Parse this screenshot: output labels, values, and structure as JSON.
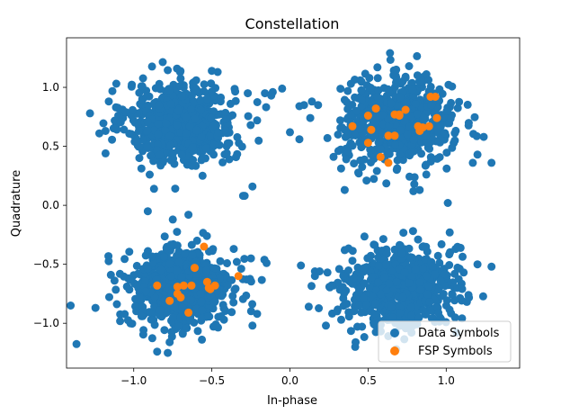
{
  "chart_data": {
    "type": "scatter",
    "title": "Constellation",
    "xlabel": "In-phase",
    "ylabel": "Quadrature",
    "xlim": [
      -1.43,
      1.47
    ],
    "ylim": [
      -1.38,
      1.42
    ],
    "xticks": [
      -1.0,
      -0.5,
      0.0,
      0.5,
      1.0
    ],
    "xtick_labels": [
      "−1.0",
      "−0.5",
      "0.0",
      "0.5",
      "1.0"
    ],
    "yticks": [
      -1.0,
      -0.5,
      0.0,
      0.5,
      1.0
    ],
    "ytick_labels": [
      "−1.0",
      "−0.5",
      "0.0",
      "0.5",
      "1.0"
    ],
    "grid": false,
    "legend_position": "lower-right",
    "series": [
      {
        "name": "Data Symbols",
        "color": "#1f77b4",
        "clusters": [
          {
            "center": [
              -0.7,
              0.7
            ],
            "spread": 0.17,
            "count": 700
          },
          {
            "center": [
              0.7,
              0.7
            ],
            "spread": 0.17,
            "count": 700
          },
          {
            "center": [
              -0.7,
              -0.7
            ],
            "spread": 0.17,
            "count": 700
          },
          {
            "center": [
              0.7,
              -0.7
            ],
            "spread": 0.17,
            "count": 700
          }
        ],
        "outliers": [
          [
            -1.28,
            0.78
          ],
          [
            -1.18,
            0.44
          ],
          [
            -1.22,
            0.61
          ],
          [
            -0.87,
            0.14
          ],
          [
            -0.85,
            -1.24
          ],
          [
            -0.95,
            -0.94
          ],
          [
            -0.96,
            -0.78
          ],
          [
            -0.77,
            -1.16
          ],
          [
            -0.66,
            -1.04
          ],
          [
            -0.91,
            -0.05
          ],
          [
            -0.75,
            -0.12
          ],
          [
            -0.65,
            -0.08
          ],
          [
            -0.36,
            -0.37
          ],
          [
            -0.34,
            -0.48
          ],
          [
            -0.25,
            -0.45
          ],
          [
            -0.24,
            -1.02
          ],
          [
            -0.21,
            -0.92
          ],
          [
            -0.15,
            -0.49
          ],
          [
            -0.29,
            0.08
          ],
          [
            -0.3,
            0.08
          ],
          [
            -0.21,
            0.72
          ],
          [
            -0.16,
            0.95
          ],
          [
            -0.27,
            0.95
          ],
          [
            -0.5,
            1.14
          ],
          [
            -0.6,
            1.06
          ],
          [
            -0.24,
            0.16
          ],
          [
            -0.05,
            0.99
          ],
          [
            -0.11,
            0.96
          ],
          [
            -0.12,
            0.93
          ],
          [
            0.0,
            0.62
          ],
          [
            0.06,
            0.56
          ],
          [
            0.06,
            0.84
          ],
          [
            0.09,
            0.85
          ],
          [
            0.18,
            0.85
          ],
          [
            0.14,
            0.88
          ],
          [
            0.24,
            0.57
          ],
          [
            0.13,
            0.74
          ],
          [
            0.07,
            -0.51
          ],
          [
            0.12,
            -0.86
          ],
          [
            0.16,
            -0.56
          ],
          [
            0.19,
            -0.56
          ],
          [
            0.24,
            -0.57
          ],
          [
            0.35,
            0.13
          ],
          [
            0.31,
            0.46
          ],
          [
            0.36,
            0.39
          ],
          [
            0.49,
            0.21
          ],
          [
            0.44,
            0.27
          ],
          [
            0.45,
            1.06
          ],
          [
            0.56,
            1.17
          ],
          [
            0.39,
            1.03
          ],
          [
            0.64,
            1.29
          ],
          [
            0.68,
            1.15
          ],
          [
            0.74,
            1.09
          ],
          [
            0.79,
            0.12
          ],
          [
            0.83,
            0.13
          ],
          [
            1.01,
            0.02
          ],
          [
            1.17,
            0.36
          ],
          [
            1.29,
            0.36
          ],
          [
            1.24,
            0.58
          ],
          [
            1.2,
            0.43
          ],
          [
            1.29,
            -0.52
          ],
          [
            1.2,
            -0.5
          ],
          [
            1.06,
            -0.37
          ],
          [
            0.97,
            -0.33
          ],
          [
            0.35,
            -0.38
          ],
          [
            0.4,
            -0.47
          ],
          [
            0.23,
            -1.02
          ],
          [
            0.42,
            -1.16
          ],
          [
            0.68,
            -1.22
          ],
          [
            0.95,
            -0.91
          ]
        ]
      },
      {
        "name": "FSP Symbols",
        "color": "#ff7f0e",
        "points": [
          [
            0.4,
            0.67
          ],
          [
            0.5,
            0.76
          ],
          [
            0.55,
            0.82
          ],
          [
            0.5,
            0.53
          ],
          [
            0.52,
            0.64
          ],
          [
            0.58,
            0.41
          ],
          [
            0.63,
            0.36
          ],
          [
            0.63,
            0.59
          ],
          [
            0.67,
            0.59
          ],
          [
            0.67,
            0.77
          ],
          [
            0.7,
            0.77
          ],
          [
            0.7,
            0.76
          ],
          [
            0.74,
            0.81
          ],
          [
            0.82,
            0.67
          ],
          [
            0.85,
            0.66
          ],
          [
            0.83,
            0.63
          ],
          [
            0.89,
            0.67
          ],
          [
            0.9,
            0.92
          ],
          [
            0.94,
            0.74
          ],
          [
            0.93,
            0.92
          ],
          [
            -0.85,
            -0.68
          ],
          [
            -0.77,
            -0.81
          ],
          [
            -0.72,
            -0.69
          ],
          [
            -0.72,
            -0.75
          ],
          [
            -0.7,
            -0.78
          ],
          [
            -0.68,
            -0.68
          ],
          [
            -0.65,
            -0.91
          ],
          [
            -0.63,
            -0.68
          ],
          [
            -0.61,
            -0.53
          ],
          [
            -0.55,
            -0.35
          ],
          [
            -0.53,
            -0.65
          ],
          [
            -0.52,
            -0.7
          ],
          [
            -0.51,
            -0.71
          ],
          [
            -0.48,
            -0.68
          ],
          [
            -0.33,
            -0.6
          ]
        ]
      }
    ]
  }
}
